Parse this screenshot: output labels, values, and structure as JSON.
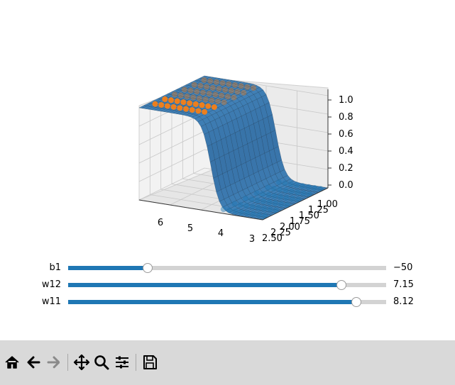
{
  "figure": {
    "axes": {
      "x_ticks": [
        "6",
        "5",
        "4",
        "3"
      ],
      "y_ticks": [
        "1.00",
        "1.25",
        "1.50",
        "1.75",
        "2.00",
        "2.25",
        "2.50"
      ],
      "z_ticks": [
        "0.0",
        "0.2",
        "0.4",
        "0.6",
        "0.8",
        "1.0"
      ]
    },
    "colors": {
      "surface": "#3f7fb5",
      "surface_edge": "#0f2f4a",
      "points_low": "#1f77b4",
      "points_high": "#ff7f0e"
    }
  },
  "sliders": [
    {
      "label": "b1",
      "value_text": "−50",
      "fraction": 0.25
    },
    {
      "label": "w12",
      "value_text": "7.15",
      "fraction": 0.86
    },
    {
      "label": "w11",
      "value_text": "8.12",
      "fraction": 0.907
    }
  ],
  "toolbar": {
    "buttons": [
      {
        "name": "home-icon",
        "enabled": true
      },
      {
        "name": "back-arrow-icon",
        "enabled": true
      },
      {
        "name": "forward-arrow-icon",
        "enabled": false
      },
      {
        "name": "pan-icon",
        "enabled": true
      },
      {
        "name": "zoom-icon",
        "enabled": true
      },
      {
        "name": "configure-subplots-icon",
        "enabled": true
      },
      {
        "name": "save-icon",
        "enabled": true
      }
    ]
  }
}
